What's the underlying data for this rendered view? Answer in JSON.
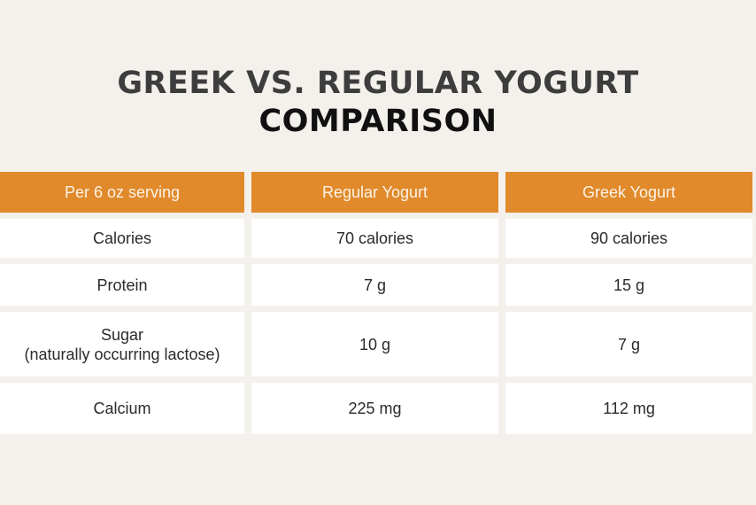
{
  "title": {
    "line1": "GREEK VS. REGULAR YOGURT",
    "line2": "COMPARISON"
  },
  "table": {
    "headers": [
      "Per 6 oz serving",
      "Regular Yogurt",
      "Greek Yogurt"
    ],
    "rows": [
      {
        "label": "Calories",
        "regular": "70 calories",
        "greek": "90 calories"
      },
      {
        "label": "Protein",
        "regular": "7 g",
        "greek": "15 g"
      },
      {
        "label": "Sugar",
        "sublabel": "(naturally occurring lactose)",
        "regular": "10 g",
        "greek": "7 g"
      },
      {
        "label": "Calcium",
        "regular": "225 mg",
        "greek": "112 mg"
      }
    ]
  },
  "colors": {
    "background": "#f4f1ec",
    "header": "#e08a2c",
    "header_text": "#fdf3e6",
    "cell": "#ffffff"
  }
}
